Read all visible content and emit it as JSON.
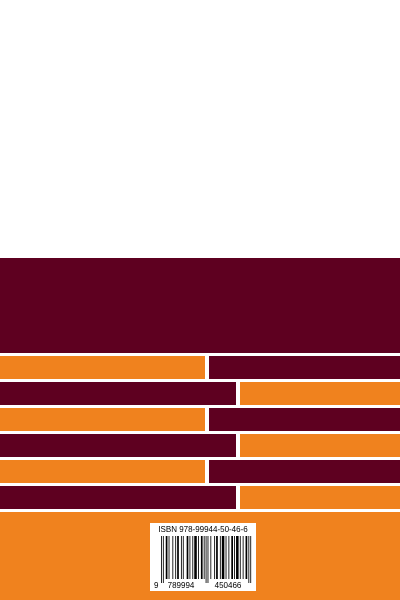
{
  "isbn": "ISBN 978-99944-50-46-6",
  "barcode": {
    "first_digit": "9",
    "left_group": "789994",
    "right_group": "450466"
  }
}
